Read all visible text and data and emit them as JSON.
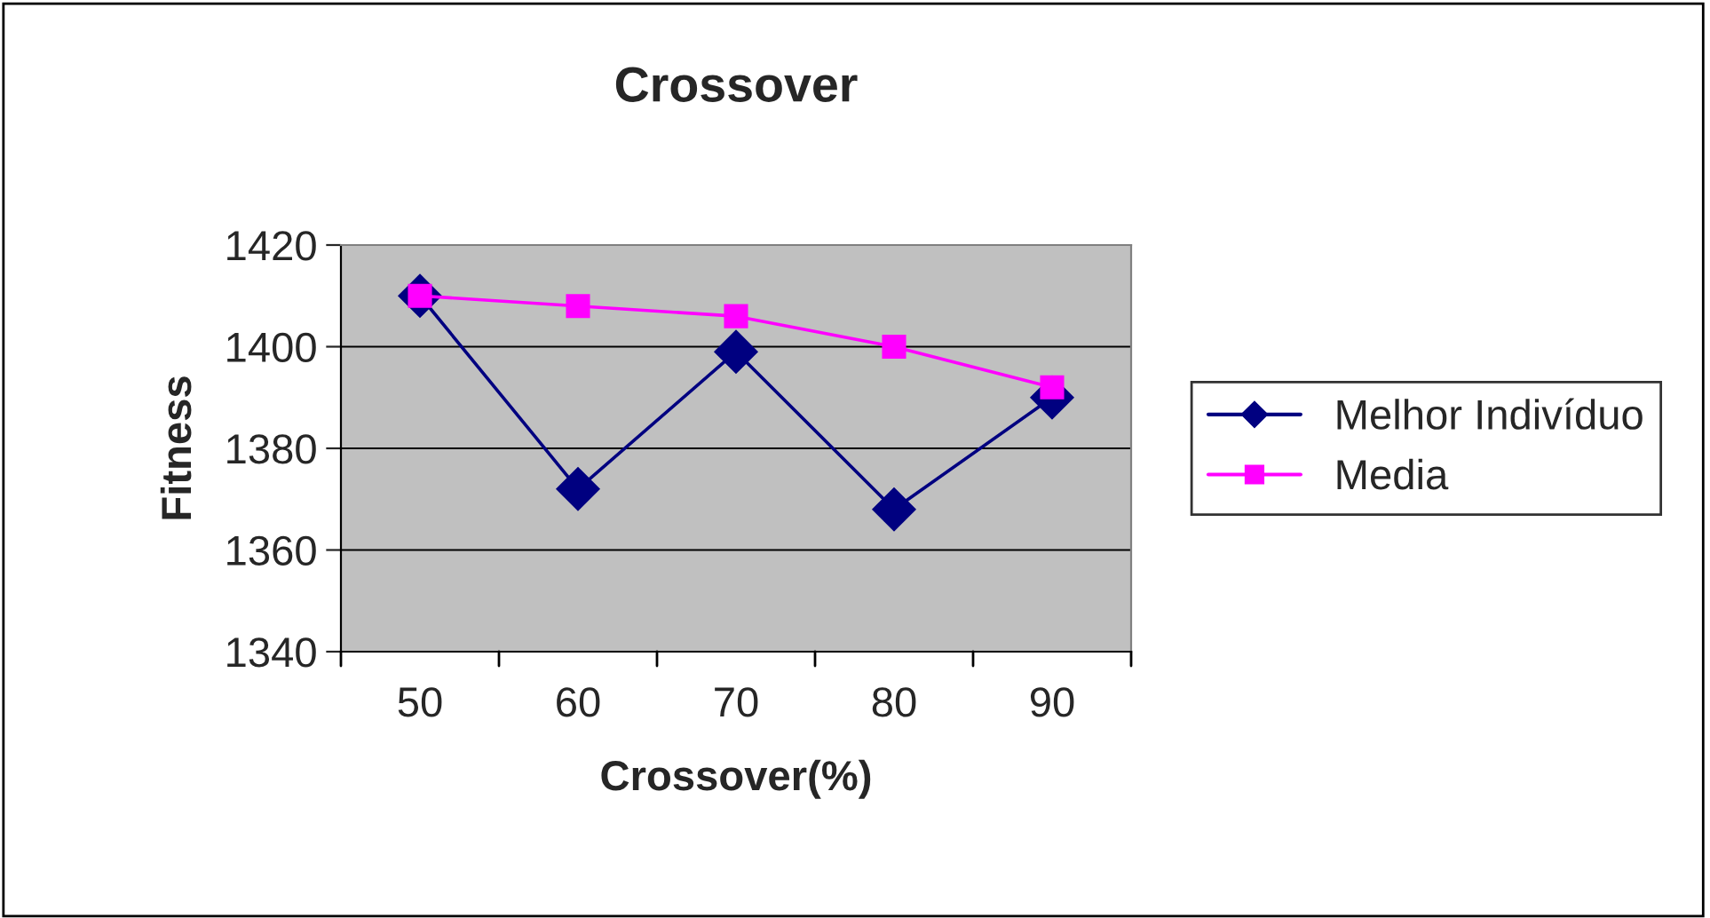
{
  "chart_data": {
    "type": "line",
    "title": "Crossover",
    "xlabel": "Crossover(%)",
    "ylabel": "Fitness",
    "categories": [
      "50",
      "60",
      "70",
      "80",
      "90"
    ],
    "series": [
      {
        "name": "Melhor Indivíduo",
        "color": "#000080",
        "marker": "diamond",
        "values": [
          1410,
          1372,
          1399,
          1368,
          1390
        ]
      },
      {
        "name": "Media",
        "color": "#ff00ff",
        "marker": "square",
        "values": [
          1410,
          1408,
          1406,
          1400,
          1392
        ]
      }
    ],
    "ylim": [
      1340,
      1420
    ],
    "yticks": [
      1340,
      1360,
      1380,
      1400,
      1420
    ],
    "grid": "y",
    "legend": "right"
  }
}
